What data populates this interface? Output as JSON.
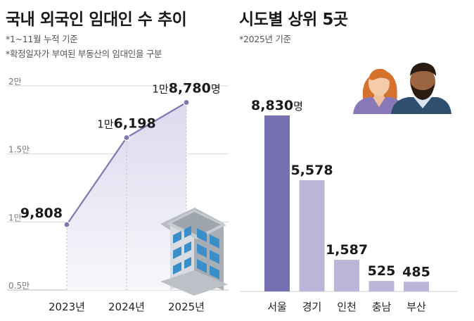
{
  "left": {
    "title": "국내 외국인 임대인 수 추이",
    "notes": [
      "*1~11월 누적 기준",
      "*확정일자가 부여된 부동산의 임대인을 구분"
    ]
  },
  "right": {
    "title": "시도별 상위 5곳",
    "notes": [
      "*2025년 기준"
    ]
  },
  "colors": {
    "line": "#7d7ab3",
    "area": "#e9e8f3",
    "bar_top": "#7570b0",
    "bar_other": "#b9b6d7",
    "grid": "#d9d9d9"
  },
  "icons": [
    "apartment-building-icon",
    "couple-avatar-icon"
  ],
  "chart_data": [
    {
      "type": "area",
      "title": "국내 외국인 임대인 수 추이",
      "categories": [
        "2023년",
        "2024년",
        "2025년"
      ],
      "values": [
        9808,
        16198,
        18780
      ],
      "data_labels": [
        {
          "prefix": "",
          "main": "9,808",
          "suffix": ""
        },
        {
          "prefix": "1만",
          "main": "6,198",
          "suffix": ""
        },
        {
          "prefix": "1만",
          "main": "8,780",
          "suffix": "명"
        }
      ],
      "yticks": [
        {
          "value": 20000,
          "label": "2만"
        },
        {
          "value": 15000,
          "label": "1.5만"
        },
        {
          "value": 10000,
          "label": "1만"
        },
        {
          "value": 5000,
          "label": "0.5만"
        }
      ],
      "ylim": [
        5000,
        20000
      ],
      "grid": true
    },
    {
      "type": "bar",
      "title": "시도별 상위 5곳",
      "categories": [
        "서울",
        "경기",
        "인천",
        "충남",
        "부산"
      ],
      "values": [
        8830,
        5578,
        1587,
        525,
        485
      ],
      "data_labels": [
        "8,830",
        "5,578",
        "1,587",
        "525",
        "485"
      ],
      "first_label_suffix": "명"
    }
  ]
}
